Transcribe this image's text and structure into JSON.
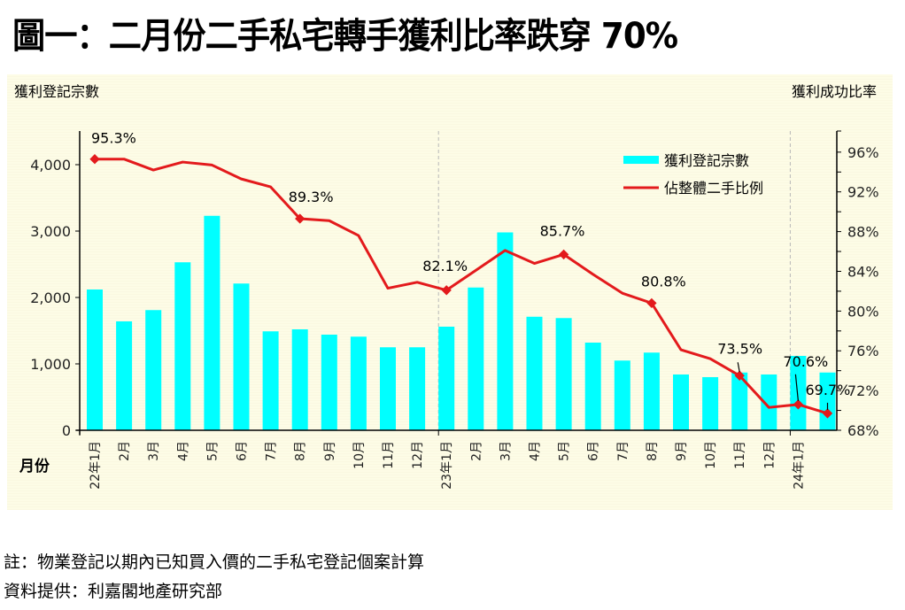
{
  "title": "圖一：二月份二手私宅轉手獲利比率跌穿 70%",
  "notes": [
    "註：物業登記以期內已知買入價的二手私宅登記個案計算",
    "資料提供：利嘉閣地產研究部"
  ],
  "colors": {
    "bar": "#00ffff",
    "line": "#e31a1c",
    "background": "#fdfce6"
  },
  "chart_data": {
    "type": "bar+line",
    "title": "圖一：二月份二手私宅轉手獲利比率跌穿 70%",
    "xlabel": "月份",
    "ylabel": "獲利登記宗數",
    "y2label": "獲利成功比率",
    "ylim": [
      0,
      4400
    ],
    "yticks": [
      0,
      1000,
      2000,
      3000,
      4000
    ],
    "ytick_labels": [
      "0",
      "1,000",
      "2,000",
      "3,000",
      "4,000"
    ],
    "y2lim": [
      68,
      98
    ],
    "y2ticks": [
      68,
      72,
      76,
      80,
      84,
      88,
      92,
      96
    ],
    "y2tick_labels": [
      "68%",
      "72%",
      "76%",
      "80%",
      "84%",
      "88%",
      "92%",
      "96%"
    ],
    "categories": [
      "22年1月",
      "2月",
      "3月",
      "4月",
      "5月",
      "6月",
      "7月",
      "8月",
      "9月",
      "10月",
      "11月",
      "12月",
      "23年1月",
      "2月",
      "3月",
      "4月",
      "5月",
      "6月",
      "7月",
      "8月",
      "9月",
      "10月",
      "11月",
      "12月",
      "24年1月",
      ""
    ],
    "series": [
      {
        "name": "獲利登記宗數",
        "type": "bar",
        "axis": "left",
        "values": [
          2120,
          1640,
          1810,
          2530,
          3230,
          2210,
          1490,
          1520,
          1440,
          1410,
          1250,
          1250,
          1560,
          2150,
          2980,
          1710,
          1690,
          1320,
          1050,
          1170,
          840,
          800,
          870,
          840,
          1120,
          870
        ]
      },
      {
        "name": "佔整體二手比例",
        "type": "line",
        "axis": "right",
        "values": [
          95.3,
          95.3,
          94.2,
          95.0,
          94.7,
          93.3,
          92.5,
          89.3,
          89.1,
          87.6,
          82.3,
          82.9,
          82.1,
          84.1,
          86.1,
          84.8,
          85.7,
          83.7,
          81.8,
          80.8,
          76.1,
          75.2,
          73.5,
          70.3,
          70.6,
          69.7
        ]
      }
    ],
    "annotations": [
      {
        "index": 0,
        "text": "95.3%"
      },
      {
        "index": 7,
        "text": "89.3%"
      },
      {
        "index": 12,
        "text": "82.1%"
      },
      {
        "index": 16,
        "text": "85.7%"
      },
      {
        "index": 19,
        "text": "80.8%"
      },
      {
        "index": 22,
        "text": "73.5%"
      },
      {
        "index": 24,
        "text": "70.6%"
      },
      {
        "index": 25,
        "text": "69.7%"
      }
    ],
    "year_dividers": [
      12,
      24
    ],
    "legend": {
      "position": "top-right",
      "entries": [
        "獲利登記宗數",
        "佔整體二手比例"
      ]
    },
    "grid": false
  }
}
